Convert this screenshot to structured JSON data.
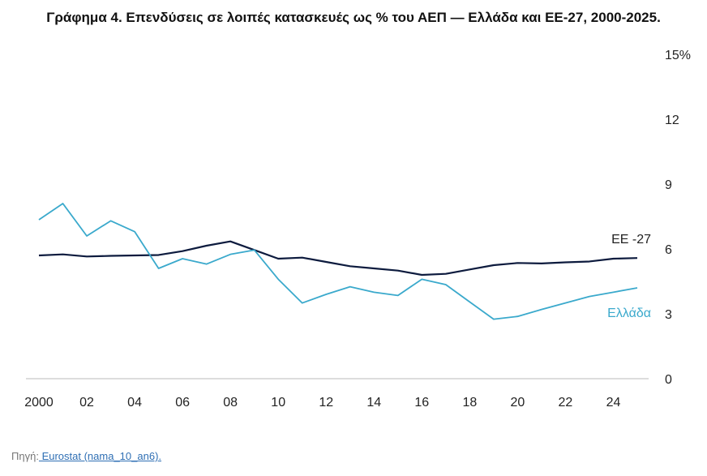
{
  "chart_data": {
    "type": "line",
    "title": "Γράφημα 4. Επενδύσεις σε λοιπές κατασκευές ως % του ΑΕΠ — Ελλάδα και ΕΕ-27, 2000-2025.",
    "x": [
      2000,
      2001,
      2002,
      2003,
      2004,
      2005,
      2006,
      2007,
      2008,
      2009,
      2010,
      2011,
      2012,
      2013,
      2014,
      2015,
      2016,
      2017,
      2018,
      2019,
      2020,
      2021,
      2022,
      2023,
      2024,
      2025
    ],
    "x_tick_labels": [
      "2000",
      "02",
      "04",
      "06",
      "08",
      "10",
      "12",
      "14",
      "16",
      "18",
      "20",
      "22",
      "24"
    ],
    "x_tick_values": [
      2000,
      2002,
      2004,
      2006,
      2008,
      2010,
      2012,
      2014,
      2016,
      2018,
      2020,
      2022,
      2024
    ],
    "y_tick_labels": [
      "0",
      "3",
      "6",
      "9",
      "12",
      "15%"
    ],
    "y_tick_values": [
      0,
      3,
      6,
      9,
      12,
      15
    ],
    "ylim": [
      0,
      15
    ],
    "xlim": [
      2000,
      2025
    ],
    "y_axis_position": "right",
    "grid": false,
    "series": [
      {
        "name": "ΕΕ -27",
        "color": "#0d1b3e",
        "values": [
          5.7,
          5.75,
          5.65,
          5.68,
          5.7,
          5.72,
          5.9,
          6.15,
          6.35,
          5.95,
          5.55,
          5.6,
          5.4,
          5.2,
          5.1,
          5.0,
          4.8,
          4.85,
          5.05,
          5.25,
          5.35,
          5.33,
          5.38,
          5.42,
          5.55,
          5.58
        ]
      },
      {
        "name": "Ελλάδα",
        "color": "#3aa9cc",
        "values": [
          7.35,
          8.1,
          6.6,
          7.3,
          6.8,
          5.1,
          5.55,
          5.3,
          5.75,
          5.95,
          4.6,
          3.5,
          3.9,
          4.25,
          4.0,
          3.85,
          4.6,
          4.35,
          3.55,
          2.75,
          2.88,
          3.2,
          3.5,
          3.8,
          4.0,
          4.2
        ]
      }
    ]
  },
  "source": {
    "prefix": "Πηγή:",
    "link": " Eurostat (nama_10_an6)."
  }
}
